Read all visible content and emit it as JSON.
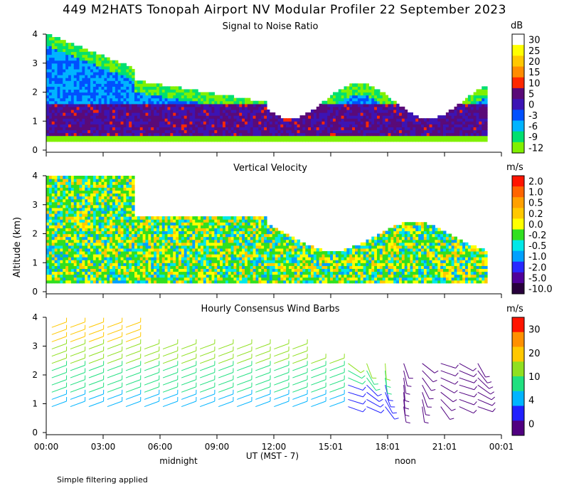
{
  "title": "449 M2HATS Tonopah Airport NV Modular Profiler 22 September 2023",
  "y_axis_label": "Altitude (km)",
  "x_axis_label": "UT  (MST - 7)",
  "x_ticks": [
    "00:00",
    "03:00",
    "06:00",
    "09:00",
    "12:00",
    "15:01",
    "18:01",
    "21:01",
    "00:01"
  ],
  "local_markers": [
    "midnight",
    "noon"
  ],
  "footnote": "Simple filtering applied",
  "chart_data": [
    {
      "type": "heatmap",
      "title": "Signal to Noise Ratio",
      "unit": "dB",
      "ylim": [
        0,
        4
      ],
      "y_ticks": [
        "0",
        "1",
        "2",
        "3",
        "4"
      ],
      "colorbar_labels": [
        "30",
        "25",
        "20",
        "15",
        "10",
        "5",
        "0",
        "-3",
        "-6",
        "-9",
        "-12"
      ],
      "colorbar_colors": [
        "#ffffff",
        "#ffff00",
        "#ffc800",
        "#ff8c00",
        "#ff2800",
        "#5a0a78",
        "#3c14b4",
        "#0050ff",
        "#00b4ff",
        "#00e070",
        "#80f000"
      ]
    },
    {
      "type": "heatmap",
      "title": "Vertical Velocity",
      "unit": "m/s",
      "ylim": [
        0,
        4
      ],
      "y_ticks": [
        "0",
        "1",
        "2",
        "3",
        "4"
      ],
      "colorbar_labels": [
        "2.0",
        "1.0",
        "0.5",
        "0.2",
        "0.0",
        "-0.2",
        "-0.5",
        "-1.0",
        "-2.0",
        "-5.0",
        "-10.0"
      ],
      "colorbar_colors": [
        "#ff1400",
        "#ff6400",
        "#ffa000",
        "#ffc800",
        "#ffff00",
        "#30e020",
        "#00e8e8",
        "#00a0ff",
        "#2828ff",
        "#50009a",
        "#28003c"
      ]
    },
    {
      "type": "scatter",
      "title": "Hourly Consensus Wind Barbs",
      "unit": "m/s",
      "ylim": [
        0,
        4
      ],
      "y_ticks": [
        "0",
        "1",
        "2",
        "3",
        "4"
      ],
      "colorbar_labels": [
        "30",
        "20",
        "10",
        "4",
        "0"
      ],
      "colorbar_colors": [
        "#ff1400",
        "#ff9000",
        "#ffc800",
        "#90e020",
        "#20e080",
        "#00b4ff",
        "#2020ff",
        "#500080"
      ]
    }
  ]
}
